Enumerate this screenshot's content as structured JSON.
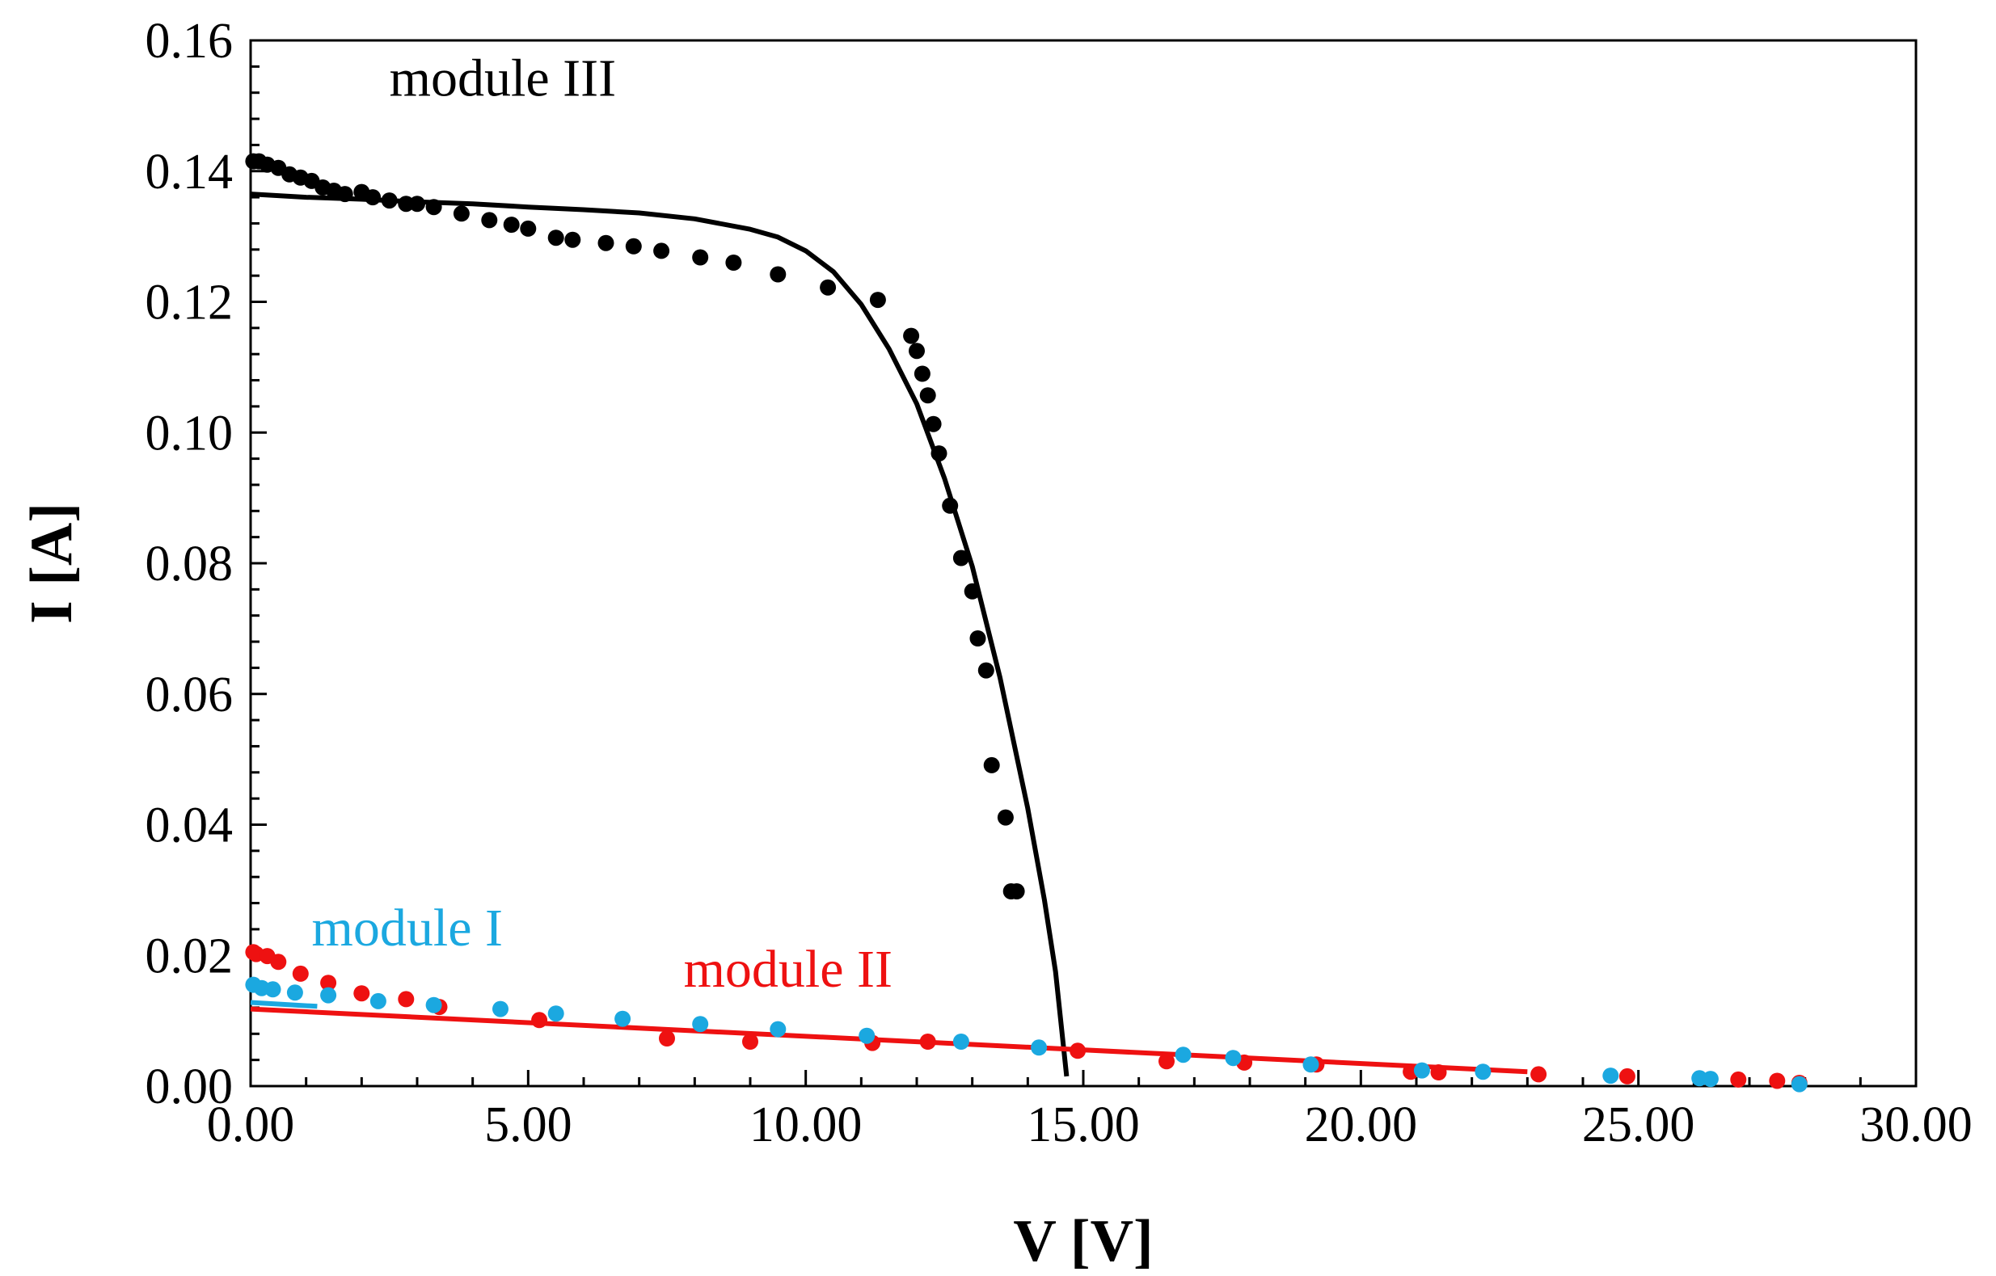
{
  "chart_data": {
    "type": "scatter",
    "title": "",
    "xlabel": "V [V]",
    "ylabel": "I [A]",
    "xlim": [
      0,
      30
    ],
    "ylim": [
      0,
      0.16
    ],
    "xticks": [
      0,
      5,
      10,
      15,
      20,
      25,
      30
    ],
    "xtick_labels": [
      "0.00",
      "5.00",
      "10.00",
      "15.00",
      "20.00",
      "25.00",
      "30.00"
    ],
    "yticks": [
      0,
      0.02,
      0.04,
      0.06,
      0.08,
      0.1,
      0.12,
      0.14,
      0.16
    ],
    "ytick_labels": [
      "0.00",
      "0.02",
      "0.04",
      "0.06",
      "0.08",
      "0.10",
      "0.12",
      "0.14",
      "0.16"
    ],
    "grid": false,
    "annotations": [
      {
        "text": "module III",
        "color": "#000000",
        "x": 2.5,
        "y": 0.1515
      },
      {
        "text": "module I",
        "color": "#1ba8e0",
        "x": 1.1,
        "y": 0.0215
      },
      {
        "text": "module II",
        "color": "#ee1111",
        "x": 7.8,
        "y": 0.0152
      }
    ],
    "series": [
      {
        "name": "module III measured",
        "kind": "points",
        "color": "#000000",
        "x": [
          0.05,
          0.15,
          0.3,
          0.5,
          0.7,
          0.9,
          1.1,
          1.3,
          1.5,
          1.7,
          2.0,
          2.2,
          2.5,
          2.8,
          3.0,
          3.3,
          3.8,
          4.3,
          4.7,
          5.0,
          5.5,
          5.8,
          6.4,
          6.9,
          7.4,
          8.1,
          8.7,
          9.5,
          10.4,
          11.3,
          11.9,
          12.0,
          12.1,
          12.2,
          12.3,
          12.4,
          12.6,
          12.8,
          13.0,
          13.1,
          13.25,
          13.35,
          13.6,
          13.7,
          13.8
        ],
        "y": [
          0.1415,
          0.1415,
          0.141,
          0.1405,
          0.1395,
          0.139,
          0.1385,
          0.1375,
          0.137,
          0.1365,
          0.1368,
          0.136,
          0.1355,
          0.135,
          0.135,
          0.1345,
          0.1335,
          0.1325,
          0.1318,
          0.1312,
          0.1298,
          0.1295,
          0.129,
          0.1285,
          0.1278,
          0.1268,
          0.126,
          0.1242,
          0.1222,
          0.1203,
          0.1148,
          0.1125,
          0.109,
          0.1057,
          0.1013,
          0.0968,
          0.0888,
          0.0808,
          0.0757,
          0.0685,
          0.0636,
          0.0491,
          0.0411,
          0.0298,
          0.0298
        ]
      },
      {
        "name": "module II measured",
        "kind": "points",
        "color": "#ee1111",
        "x": [
          0.05,
          0.1,
          0.3,
          0.5,
          0.9,
          1.4,
          2.0,
          2.8,
          3.4,
          5.2,
          7.5,
          9.0,
          11.2,
          12.2,
          14.9,
          16.5,
          17.9,
          19.2,
          20.9,
          21.4,
          23.2,
          24.8,
          26.8,
          27.5,
          27.9
        ],
        "y": [
          0.0205,
          0.0202,
          0.0199,
          0.019,
          0.0172,
          0.0158,
          0.0142,
          0.0133,
          0.0121,
          0.0101,
          0.0073,
          0.0068,
          0.0066,
          0.0068,
          0.0054,
          0.0038,
          0.0036,
          0.0033,
          0.0022,
          0.0021,
          0.0018,
          0.0015,
          0.001,
          0.0008,
          0.0005
        ]
      },
      {
        "name": "module I measured",
        "kind": "points",
        "color": "#1ba8e0",
        "x": [
          0.05,
          0.2,
          0.4,
          0.8,
          1.4,
          2.3,
          3.3,
          4.5,
          5.5,
          6.7,
          8.1,
          9.5,
          11.1,
          12.8,
          14.2,
          16.8,
          17.7,
          19.1,
          21.1,
          22.2,
          24.5,
          26.1,
          26.3,
          27.9
        ],
        "y": [
          0.0155,
          0.015,
          0.0148,
          0.0143,
          0.0139,
          0.013,
          0.0124,
          0.0118,
          0.0111,
          0.0103,
          0.0095,
          0.0087,
          0.0077,
          0.0068,
          0.0059,
          0.0048,
          0.0043,
          0.0033,
          0.0024,
          0.0022,
          0.0016,
          0.0012,
          0.0011,
          0.0003
        ]
      },
      {
        "name": "module III model",
        "kind": "line",
        "color": "#000000",
        "x": [
          0,
          1,
          2,
          3,
          4,
          5,
          6,
          7,
          8,
          9,
          9.5,
          10,
          10.5,
          11,
          11.5,
          12,
          12.5,
          13,
          13.5,
          14,
          14.3,
          14.5,
          14.7
        ],
        "y": [
          0.1365,
          0.136,
          0.1357,
          0.1353,
          0.135,
          0.1345,
          0.1341,
          0.1336,
          0.1327,
          0.1311,
          0.1299,
          0.1278,
          0.1246,
          0.1196,
          0.1128,
          0.1044,
          0.093,
          0.0795,
          0.0625,
          0.0425,
          0.0285,
          0.0175,
          0.0015
        ]
      },
      {
        "name": "module I model",
        "kind": "line",
        "color": "#1ba8e0",
        "x": [
          0,
          1.2
        ],
        "y": [
          0.0128,
          0.0122
        ]
      },
      {
        "name": "module II model",
        "kind": "line",
        "color": "#ee1111",
        "x": [
          0,
          23
        ],
        "y": [
          0.0118,
          0.0022
        ]
      }
    ]
  }
}
